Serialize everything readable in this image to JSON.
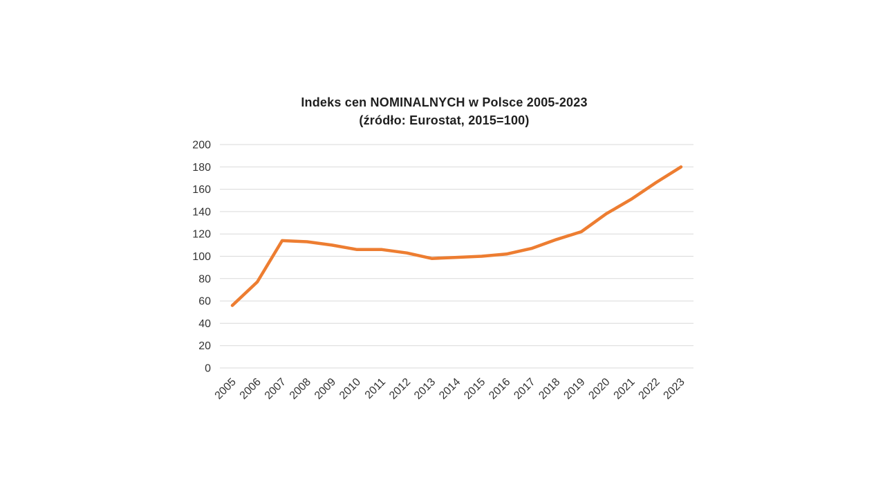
{
  "page": {
    "background_color": "#ffffff"
  },
  "chart_data": {
    "type": "line",
    "title": "Indeks cen NOMINALNYCH w Polsce 2005-2023",
    "subtitle": "(źródło: Eurostat, 2015=100)",
    "categories": [
      "2005",
      "2006",
      "2007",
      "2008",
      "2009",
      "2010",
      "2011",
      "2012",
      "2013",
      "2014",
      "2015",
      "2016",
      "2017",
      "2018",
      "2019",
      "2020",
      "2021",
      "2022",
      "2023"
    ],
    "values": [
      56,
      77,
      114,
      113,
      110,
      106,
      106,
      103,
      98,
      99,
      100,
      102,
      107,
      115,
      122,
      138,
      151,
      166,
      180
    ],
    "xlabel": "",
    "ylabel": "",
    "ylim": [
      0,
      200
    ],
    "y_tick_step": 20,
    "y_tick_labels": [
      "0",
      "20",
      "40",
      "60",
      "80",
      "100",
      "120",
      "140",
      "160",
      "180",
      "200"
    ],
    "grid": true,
    "legend_position": "none",
    "line_color": "#ED7D31",
    "line_width": 4.5,
    "gridline_color": "#D9D9D9",
    "axis_label_color": "#333333",
    "title_color": "#1f1f1f"
  }
}
